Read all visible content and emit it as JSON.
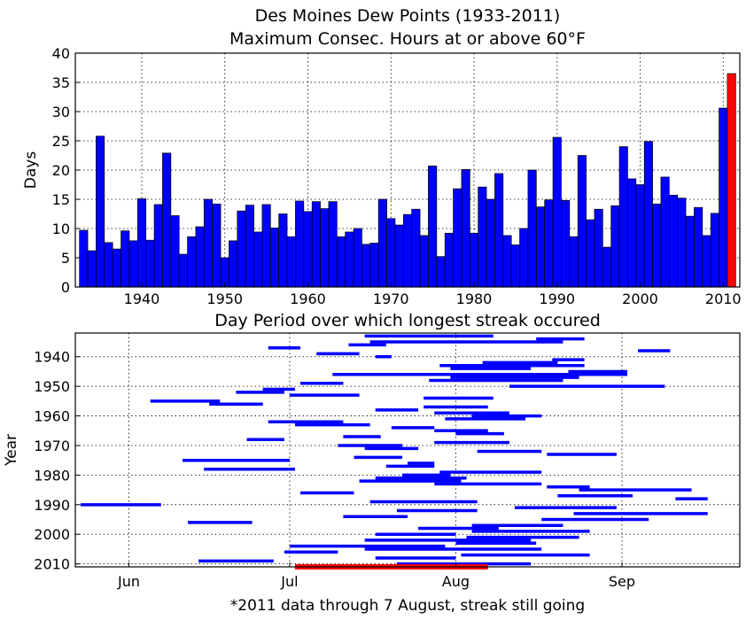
{
  "colors": {
    "bar": "#0000ff",
    "highlight": "#ff0000",
    "edge": "#000000"
  },
  "chart_data": [
    {
      "type": "bar",
      "title_lines": [
        "Des Moines Dew Points (1933-2011)",
        "Maximum Consec. Hours at or above 60°F"
      ],
      "xlabel": "",
      "ylabel": "Days",
      "xlim": [
        1932,
        2012
      ],
      "ylim": [
        0,
        40
      ],
      "xticks": [
        1940,
        1950,
        1960,
        1970,
        1980,
        1990,
        2000,
        2010
      ],
      "yticks": [
        0,
        5,
        10,
        15,
        20,
        25,
        30,
        35,
        40
      ],
      "grid": true,
      "highlight_category": 2011,
      "categories": [
        1933,
        1934,
        1935,
        1936,
        1937,
        1938,
        1939,
        1940,
        1941,
        1942,
        1943,
        1944,
        1945,
        1946,
        1947,
        1948,
        1949,
        1950,
        1951,
        1952,
        1953,
        1954,
        1955,
        1956,
        1957,
        1958,
        1959,
        1960,
        1961,
        1962,
        1963,
        1964,
        1965,
        1966,
        1967,
        1968,
        1969,
        1970,
        1971,
        1972,
        1973,
        1974,
        1975,
        1976,
        1977,
        1978,
        1979,
        1980,
        1981,
        1982,
        1983,
        1984,
        1985,
        1986,
        1987,
        1988,
        1989,
        1990,
        1991,
        1992,
        1993,
        1994,
        1995,
        1996,
        1997,
        1998,
        1999,
        2000,
        2001,
        2002,
        2003,
        2004,
        2005,
        2006,
        2007,
        2008,
        2009,
        2010,
        2011
      ],
      "values": [
        9.7,
        6.2,
        25.8,
        7.6,
        6.5,
        9.6,
        7.9,
        15.1,
        8.0,
        14.1,
        22.9,
        12.2,
        5.6,
        8.6,
        10.3,
        15.0,
        14.2,
        5.0,
        7.9,
        13.0,
        14.0,
        9.4,
        14.1,
        10.1,
        12.5,
        8.6,
        14.7,
        12.9,
        14.6,
        13.4,
        14.6,
        8.6,
        9.4,
        10.0,
        7.3,
        7.5,
        15.0,
        11.7,
        10.6,
        12.4,
        13.3,
        8.8,
        20.7,
        5.2,
        9.2,
        16.8,
        20.1,
        9.2,
        17.1,
        15.0,
        19.4,
        8.8,
        7.2,
        10.0,
        20.0,
        13.7,
        14.9,
        25.6,
        14.8,
        8.6,
        22.5,
        11.5,
        13.3,
        6.8,
        13.9,
        24.0,
        18.5,
        17.5,
        24.9,
        14.2,
        18.8,
        15.7,
        15.2,
        12.1,
        13.6,
        8.8,
        12.6,
        30.6,
        36.5
      ]
    },
    {
      "type": "range",
      "title": "Day Period over which longest streak occured",
      "xlabel": "",
      "ylabel": "Year",
      "xlim": [
        "May 22",
        "Sep 23"
      ],
      "ylim": [
        2011,
        1932
      ],
      "xticks": [
        "Jun",
        "Jul",
        "Aug",
        "Sep"
      ],
      "xtick_dates": [
        "Jun 1",
        "Jul 1",
        "Aug 1",
        "Sep 1"
      ],
      "yticks": [
        1940,
        1950,
        1960,
        1970,
        1980,
        1990,
        2000,
        2010
      ],
      "grid": true,
      "highlight_year": 2011,
      "streaks": [
        {
          "year": 1933,
          "start": "Jul 15",
          "end": "Aug 8"
        },
        {
          "year": 1934,
          "start": "Aug 16",
          "end": "Aug 25"
        },
        {
          "year": 1935,
          "start": "Jul 16",
          "end": "Aug 21"
        },
        {
          "year": 1936,
          "start": "Jul 12",
          "end": "Jul 19"
        },
        {
          "year": 1937,
          "start": "Jun 27",
          "end": "Jul 3"
        },
        {
          "year": 1938,
          "start": "Sep 4",
          "end": "Sep 10"
        },
        {
          "year": 1939,
          "start": "Jul 6",
          "end": "Jul 14"
        },
        {
          "year": 1940,
          "start": "Jul 17",
          "end": "Jul 20"
        },
        {
          "year": 1941,
          "start": "Aug 19",
          "end": "Aug 25"
        },
        {
          "year": 1942,
          "start": "Aug 6",
          "end": "Aug 20"
        },
        {
          "year": 1943,
          "start": "Jul 29",
          "end": "Aug 25"
        },
        {
          "year": 1944,
          "start": "Jul 31",
          "end": "Aug 15"
        },
        {
          "year": 1945,
          "start": "Aug 22",
          "end": "Sep 2"
        },
        {
          "year": 1946,
          "start": "Jul 9",
          "end": "Sep 2"
        },
        {
          "year": 1947,
          "start": "Jul 31",
          "end": "Aug 24"
        },
        {
          "year": 1948,
          "start": "Jul 27",
          "end": "Aug 21"
        },
        {
          "year": 1949,
          "start": "Jul 3",
          "end": "Jul 11"
        },
        {
          "year": 1950,
          "start": "Aug 11",
          "end": "Sep 9"
        },
        {
          "year": 1951,
          "start": "Jun 26",
          "end": "Jul 2"
        },
        {
          "year": 1952,
          "start": "Jun 21",
          "end": "Jun 30"
        },
        {
          "year": 1953,
          "start": "Jul 1",
          "end": "Jul 14"
        },
        {
          "year": 1954,
          "start": "Jul 26",
          "end": "Aug 8"
        },
        {
          "year": 1955,
          "start": "Jun 5",
          "end": "Jun 18"
        },
        {
          "year": 1956,
          "start": "Jun 16",
          "end": "Jun 26"
        },
        {
          "year": 1957,
          "start": "Jul 26",
          "end": "Aug 7"
        },
        {
          "year": 1958,
          "start": "Jul 17",
          "end": "Jul 25"
        },
        {
          "year": 1959,
          "start": "Jul 28",
          "end": "Aug 11"
        },
        {
          "year": 1960,
          "start": "Aug 4",
          "end": "Aug 17"
        },
        {
          "year": 1961,
          "start": "Jul 30",
          "end": "Aug 14"
        },
        {
          "year": 1962,
          "start": "Jun 27",
          "end": "Jul 11"
        },
        {
          "year": 1963,
          "start": "Jul 2",
          "end": "Jul 16"
        },
        {
          "year": 1964,
          "start": "Jul 20",
          "end": "Jul 28"
        },
        {
          "year": 1965,
          "start": "Jul 28",
          "end": "Aug 7"
        },
        {
          "year": 1966,
          "start": "Aug 1",
          "end": "Aug 10"
        },
        {
          "year": 1967,
          "start": "Jul 11",
          "end": "Jul 18"
        },
        {
          "year": 1968,
          "start": "Jun 23",
          "end": "Jun 30"
        },
        {
          "year": 1969,
          "start": "Jul 28",
          "end": "Aug 11"
        },
        {
          "year": 1970,
          "start": "Jul 10",
          "end": "Jul 22"
        },
        {
          "year": 1971,
          "start": "Jul 15",
          "end": "Jul 25"
        },
        {
          "year": 1972,
          "start": "Aug 5",
          "end": "Aug 17"
        },
        {
          "year": 1973,
          "start": "Aug 18",
          "end": "Aug 31"
        },
        {
          "year": 1974,
          "start": "Jul 13",
          "end": "Jul 22"
        },
        {
          "year": 1975,
          "start": "Jun 11",
          "end": "Jul 1"
        },
        {
          "year": 1976,
          "start": "Jul 23",
          "end": "Jul 28"
        },
        {
          "year": 1977,
          "start": "Jul 19",
          "end": "Jul 28"
        },
        {
          "year": 1978,
          "start": "Jun 15",
          "end": "Jul 2"
        },
        {
          "year": 1979,
          "start": "Jul 29",
          "end": "Aug 17"
        },
        {
          "year": 1980,
          "start": "Jul 22",
          "end": "Jul 31"
        },
        {
          "year": 1981,
          "start": "Jul 17",
          "end": "Aug 3"
        },
        {
          "year": 1982,
          "start": "Jul 14",
          "end": "Aug 2"
        },
        {
          "year": 1983,
          "start": "Jul 28",
          "end": "Aug 17"
        },
        {
          "year": 1984,
          "start": "Aug 18",
          "end": "Aug 26"
        },
        {
          "year": 1985,
          "start": "Aug 24",
          "end": "Sep 14"
        },
        {
          "year": 1986,
          "start": "Jul 3",
          "end": "Jul 13"
        },
        {
          "year": 1987,
          "start": "Aug 20",
          "end": "Sep 3"
        },
        {
          "year": 1988,
          "start": "Sep 11",
          "end": "Sep 17"
        },
        {
          "year": 1989,
          "start": "Jul 16",
          "end": "Aug 5"
        },
        {
          "year": 1990,
          "start": "May 23",
          "end": "Jun 7"
        },
        {
          "year": 1991,
          "start": "Aug 12",
          "end": "Aug 31"
        },
        {
          "year": 1992,
          "start": "Jul 21",
          "end": "Aug 5"
        },
        {
          "year": 1993,
          "start": "Aug 23",
          "end": "Sep 17"
        },
        {
          "year": 1994,
          "start": "Jul 11",
          "end": "Jul 23"
        },
        {
          "year": 1995,
          "start": "Aug 17",
          "end": "Sep 6"
        },
        {
          "year": 1996,
          "start": "Jun 12",
          "end": "Jun 24"
        },
        {
          "year": 1997,
          "start": "Aug 4",
          "end": "Aug 21"
        },
        {
          "year": 1998,
          "start": "Jul 25",
          "end": "Aug 9"
        },
        {
          "year": 1999,
          "start": "Aug 4",
          "end": "Aug 26"
        },
        {
          "year": 2000,
          "start": "Jul 17",
          "end": "Aug 1"
        },
        {
          "year": 2001,
          "start": "Aug 3",
          "end": "Aug 24"
        },
        {
          "year": 2002,
          "start": "Jul 15",
          "end": "Aug 15"
        },
        {
          "year": 2003,
          "start": "Aug 1",
          "end": "Aug 16"
        },
        {
          "year": 2004,
          "start": "Jul 1",
          "end": "Jul 30"
        },
        {
          "year": 2005,
          "start": "Jul 15",
          "end": "Aug 17"
        },
        {
          "year": 2006,
          "start": "Jun 30",
          "end": "Jul 10"
        },
        {
          "year": 2007,
          "start": "Aug 2",
          "end": "Aug 26"
        },
        {
          "year": 2008,
          "start": "Jul 17",
          "end": "Aug 1"
        },
        {
          "year": 2009,
          "start": "Jun 14",
          "end": "Jun 28"
        },
        {
          "year": 2010,
          "start": "Jul 21",
          "end": "Aug 15"
        },
        {
          "year": 2011,
          "start": "Jul 2",
          "end": "Aug 7"
        }
      ]
    }
  ],
  "footnote": "*2011 data through 7 August, streak still going"
}
